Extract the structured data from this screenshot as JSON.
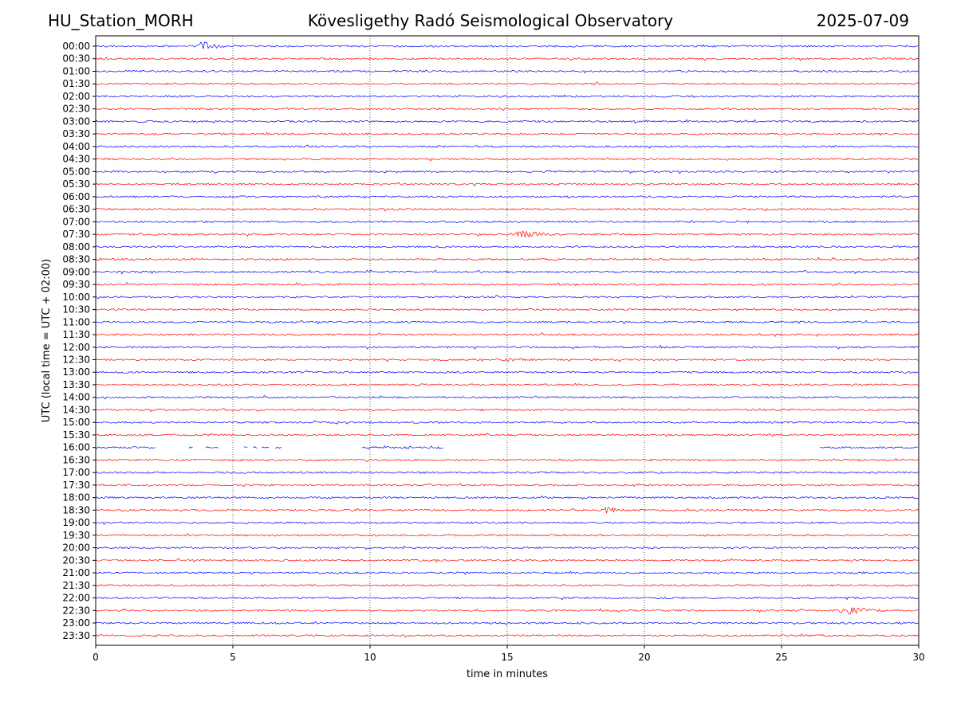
{
  "header": {
    "station": "HU_Station_MORH",
    "observatory": "Kövesligethy Radó Seismological Observatory",
    "date": "2025-07-09"
  },
  "chart_data": {
    "type": "line",
    "xlabel": "time in minutes",
    "ylabel": "UTC (local time = UTC + 02:00)",
    "xlim": [
      0,
      30
    ],
    "x_ticks": [
      0,
      5,
      10,
      15,
      20,
      25,
      30
    ],
    "grid": "vertical dotted at x ticks",
    "trace_colors": [
      "#0000ff",
      "#ff0000"
    ],
    "rows": [
      "00:00",
      "00:30",
      "01:00",
      "01:30",
      "02:00",
      "02:30",
      "03:00",
      "03:30",
      "04:00",
      "04:30",
      "05:00",
      "05:30",
      "06:00",
      "06:30",
      "07:00",
      "07:30",
      "08:00",
      "08:30",
      "09:00",
      "09:30",
      "10:00",
      "10:30",
      "11:00",
      "11:30",
      "12:00",
      "12:30",
      "13:00",
      "13:30",
      "14:00",
      "14:30",
      "15:00",
      "15:30",
      "16:00",
      "16:30",
      "17:00",
      "17:30",
      "18:00",
      "18:30",
      "19:00",
      "19:30",
      "20:00",
      "20:30",
      "21:00",
      "21:30",
      "22:00",
      "22:30",
      "23:00",
      "23:30"
    ],
    "events": [
      {
        "row": "00:00",
        "start_min": 3.7,
        "end_min": 4.8,
        "amplitude": 8
      },
      {
        "row": "07:30",
        "start_min": 15.0,
        "end_min": 17.6,
        "amplitude": 5
      },
      {
        "row": "12:00",
        "start_min": 20.5,
        "end_min": 21.0,
        "amplitude": 3
      },
      {
        "row": "12:30",
        "start_min": 14.7,
        "end_min": 15.8,
        "amplitude": 3
      },
      {
        "row": "16:00",
        "start_min": 11.0,
        "end_min": 12.6,
        "amplitude": 2
      },
      {
        "row": "18:30",
        "start_min": 18.5,
        "end_min": 19.3,
        "amplitude": 6
      },
      {
        "row": "22:00",
        "start_min": 22.2,
        "end_min": 22.4,
        "amplitude": 3
      },
      {
        "row": "22:30",
        "start_min": 26.9,
        "end_min": 28.8,
        "amplitude": 7
      }
    ],
    "gaps": [
      {
        "row": "16:00",
        "segments": [
          [
            0,
            2.2
          ],
          [
            3.4,
            3.55
          ],
          [
            4.0,
            4.5
          ],
          [
            5.4,
            5.55
          ],
          [
            5.75,
            5.9
          ],
          [
            6.05,
            6.35
          ],
          [
            6.55,
            6.8
          ],
          [
            9.7,
            12.7
          ],
          [
            26.4,
            30
          ]
        ]
      }
    ]
  }
}
